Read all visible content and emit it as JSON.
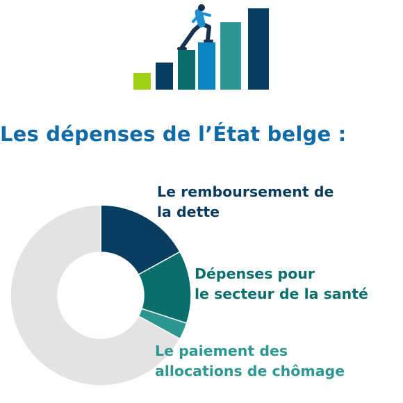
{
  "title": "Les dépenses de l’État belge :",
  "icons": {
    "illustration": "person-climbing-bar-chart-icon"
  },
  "colors": {
    "title": "#0f6aa8",
    "illustration_bars": [
      "#9fd016",
      "#073d5e",
      "#0a6e6a",
      "#0b84c2",
      "#2e9690",
      "#073d5e"
    ],
    "person_shirt": "#1f8fcf",
    "person_pants": "#16324f"
  },
  "chart_data": {
    "type": "pie",
    "variant": "donut",
    "title": "Les dépenses de l’État belge :",
    "slices": [
      {
        "label_lines": [
          "Le remboursement de",
          "la dette"
        ],
        "value": 17,
        "color": "#073d5e",
        "label_color": "#0a3a5c"
      },
      {
        "label_lines": [
          "Dépenses pour",
          "le secteur de la santé"
        ],
        "value": 13,
        "color": "#0a6e6a",
        "label_color": "#0a6e6a"
      },
      {
        "label_lines": [
          "Le paiement des",
          "allocations de chômage"
        ],
        "value": 3,
        "color": "#2e9690",
        "label_color": "#2e9690"
      },
      {
        "label_lines": [],
        "value": 67,
        "color": "#e3e3e3"
      }
    ],
    "start_angle_deg": 0,
    "direction": "clockwise",
    "legend": "labels-right"
  }
}
